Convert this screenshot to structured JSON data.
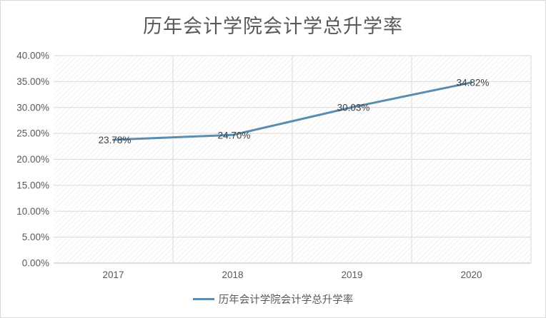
{
  "chart_data": {
    "type": "line",
    "title": "历年会计学院会计学总升学率",
    "categories": [
      "2017",
      "2018",
      "2019",
      "2020"
    ],
    "series": [
      {
        "name": "历年会计学院会计学总升学率",
        "values": [
          23.78,
          24.7,
          30.03,
          34.82
        ],
        "labels": [
          "23.78%",
          "24.70%",
          "30.03%",
          "34.82%"
        ],
        "color": "#5b8db1"
      }
    ],
    "ylim": [
      0,
      40
    ],
    "yticks": [
      "0.00%",
      "5.00%",
      "10.00%",
      "15.00%",
      "20.00%",
      "25.00%",
      "30.00%",
      "35.00%",
      "40.00%"
    ],
    "grid": true,
    "legend": "bottom"
  }
}
